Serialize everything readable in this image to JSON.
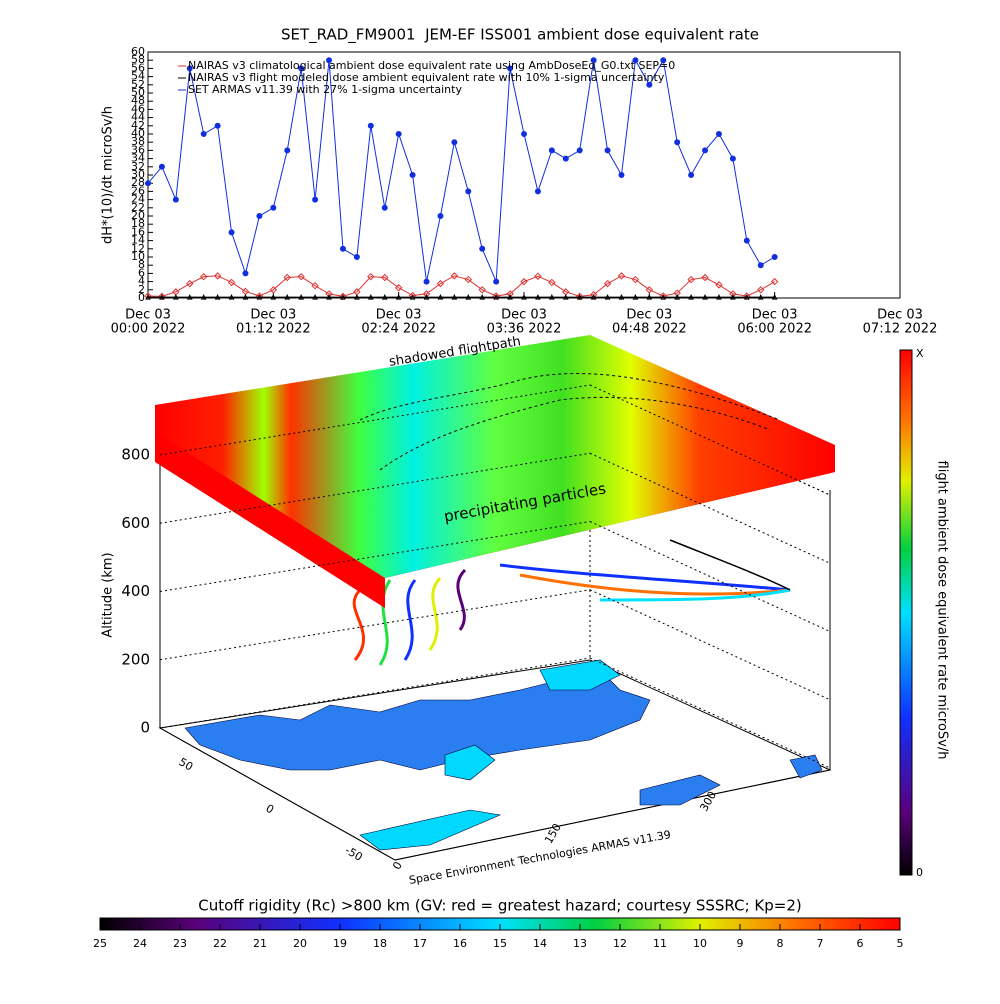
{
  "chart_data": {
    "type": "line",
    "title": "SET_RAD_FM9001  JEM-EF ISS001 ambient dose equivalent rate",
    "y_label": "dH*(10)/dt microSv/h",
    "x": [
      "2022-12-03T00:00",
      "2022-12-03T00:08",
      "2022-12-03T00:16",
      "2022-12-03T00:24",
      "2022-12-03T00:32",
      "2022-12-03T00:40",
      "2022-12-03T00:48",
      "2022-12-03T00:56",
      "2022-12-03T01:04",
      "2022-12-03T01:12",
      "2022-12-03T01:20",
      "2022-12-03T01:28",
      "2022-12-03T01:36",
      "2022-12-03T01:44",
      "2022-12-03T01:52",
      "2022-12-03T02:00",
      "2022-12-03T02:08",
      "2022-12-03T02:16",
      "2022-12-03T02:24",
      "2022-12-03T02:32",
      "2022-12-03T02:40",
      "2022-12-03T02:48",
      "2022-12-03T02:56",
      "2022-12-03T03:04",
      "2022-12-03T03:12",
      "2022-12-03T03:20",
      "2022-12-03T03:28",
      "2022-12-03T03:36",
      "2022-12-03T03:44",
      "2022-12-03T03:52",
      "2022-12-03T04:00",
      "2022-12-03T04:08",
      "2022-12-03T04:16",
      "2022-12-03T04:24",
      "2022-12-03T04:32",
      "2022-12-03T04:40",
      "2022-12-03T04:48",
      "2022-12-03T04:56",
      "2022-12-03T05:04",
      "2022-12-03T05:12",
      "2022-12-03T05:20",
      "2022-12-03T05:28",
      "2022-12-03T05:36",
      "2022-12-03T05:44",
      "2022-12-03T05:52",
      "2022-12-03T06:00"
    ],
    "series": [
      {
        "name": "NAIRAS v3 climatological ambient dose equivalent rate using AmbDoseEq_G0.txt SEP=0",
        "color": "#e03030",
        "marker": "diamond",
        "values": [
          0.5,
          0.4,
          1.5,
          3.5,
          5.2,
          5.4,
          3.8,
          1.6,
          0.5,
          2.0,
          5.0,
          5.2,
          3.0,
          1.0,
          0.4,
          1.5,
          5.2,
          5.0,
          2.5,
          0.6,
          1.0,
          3.5,
          5.4,
          4.5,
          2.0,
          0.5,
          1.0,
          4.0,
          5.3,
          3.8,
          1.5,
          0.4,
          0.8,
          3.5,
          5.4,
          4.5,
          2.0,
          0.5,
          1.2,
          4.5,
          5.0,
          3.2,
          1.0,
          0.5,
          2.0,
          4.0
        ]
      },
      {
        "name": "NAIRAS v3 flight modeled dose ambient equivalent rate with 10% 1-sigma uncertainty",
        "color": "#000000",
        "marker": "triangle",
        "values": [
          0.2,
          0.2,
          0.2,
          0.2,
          0.2,
          0.2,
          0.2,
          0.2,
          0.2,
          0.2,
          0.2,
          0.2,
          0.2,
          0.2,
          0.2,
          0.2,
          0.2,
          0.2,
          0.2,
          0.2,
          0.2,
          0.2,
          0.2,
          0.2,
          0.2,
          0.2,
          0.2,
          0.2,
          0.2,
          0.2,
          0.2,
          0.2,
          0.2,
          0.2,
          0.2,
          0.2,
          0.2,
          0.2,
          0.2,
          0.2,
          0.2,
          0.2,
          0.2,
          0.2,
          0.2,
          0.2
        ]
      },
      {
        "name": "SET ARMAS v11.39 with 27% 1-sigma uncertainty",
        "color": "#1030e0",
        "marker": "circle",
        "values": [
          28,
          32,
          24,
          56,
          40,
          42,
          16,
          6,
          20,
          22,
          36,
          56,
          24,
          58,
          12,
          10,
          42,
          22,
          40,
          30,
          4,
          20,
          38,
          26,
          12,
          4,
          56,
          40,
          26,
          36,
          34,
          36,
          58,
          36,
          30,
          58,
          52,
          58,
          38,
          30,
          36,
          40,
          34,
          14,
          8,
          10
        ]
      }
    ],
    "ylim": [
      0,
      60
    ],
    "yticks": [
      0,
      2,
      4,
      6,
      8,
      10,
      12,
      14,
      16,
      18,
      20,
      22,
      24,
      26,
      28,
      30,
      32,
      34,
      36,
      38,
      40,
      42,
      44,
      46,
      48,
      50,
      52,
      54,
      56,
      58,
      60
    ],
    "xlim": [
      "2022-12-03T00:00",
      "2022-12-03T07:12"
    ],
    "xticks": [
      {
        "value": "2022-12-03T00:00",
        "label": [
          "Dec 03",
          "00:00 2022"
        ]
      },
      {
        "value": "2022-12-03T01:12",
        "label": [
          "Dec 03",
          "01:12 2022"
        ]
      },
      {
        "value": "2022-12-03T02:24",
        "label": [
          "Dec 03",
          "02:24 2022"
        ]
      },
      {
        "value": "2022-12-03T03:36",
        "label": [
          "Dec 03",
          "03:36 2022"
        ]
      },
      {
        "value": "2022-12-03T04:48",
        "label": [
          "Dec 03",
          "04:48 2022"
        ]
      },
      {
        "value": "2022-12-03T06:00",
        "label": [
          "Dec 03",
          "06:00 2022"
        ]
      },
      {
        "value": "2022-12-03T07:12",
        "label": [
          "Dec 03",
          "07:12 2022"
        ]
      }
    ],
    "legend": "upper left"
  },
  "panel_3d": {
    "z_label": "Altitude (km)",
    "zlim": [
      0,
      800
    ],
    "zticks": [
      0,
      200,
      400,
      600,
      800
    ],
    "lat_ticks": [
      50,
      0,
      -50
    ],
    "lon_ticks": [
      0,
      150,
      300
    ],
    "top_annotation": "shadowed flightpath",
    "slab_annotation": "precipitating particles",
    "credit": "Space Environment Technologies ARMAS v11.39"
  },
  "dose_colorbar": {
    "label": "flight ambient dose equivalent rate microSv/h",
    "top": "X",
    "bottom": "0"
  },
  "rigidity_colorbar": {
    "title": "Cutoff rigidity (Rc) >800 km (GV: red = greatest hazard; courtesy SSSRC; Kp=2)",
    "lim": [
      25,
      5
    ],
    "ticks": [
      25,
      24,
      23,
      22,
      21,
      20,
      19,
      18,
      17,
      16,
      15,
      14,
      13,
      12,
      11,
      10,
      9,
      8,
      7,
      6,
      5
    ]
  }
}
